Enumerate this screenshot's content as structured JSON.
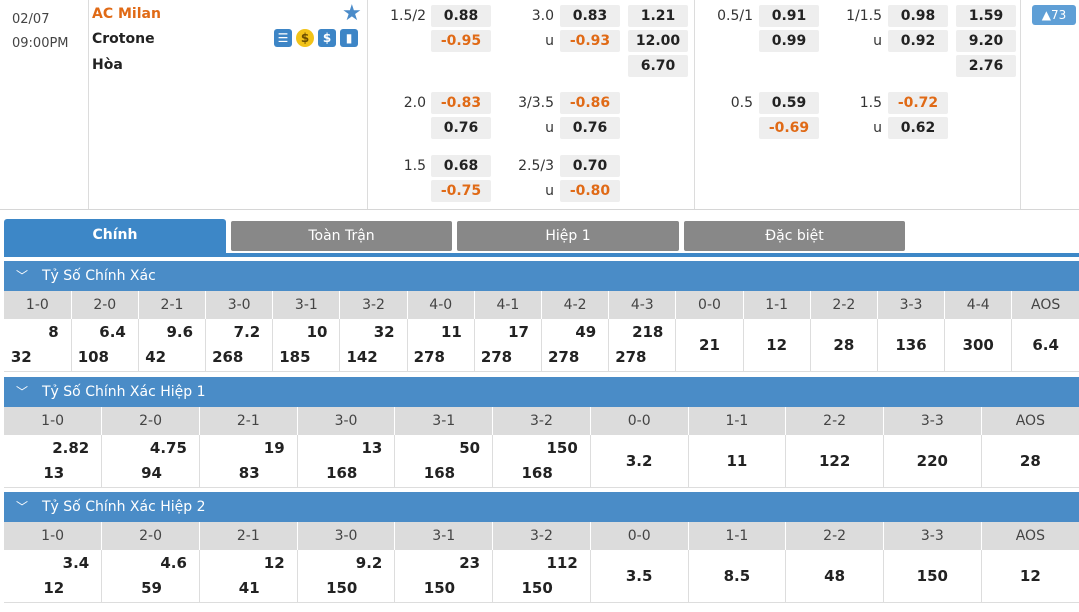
{
  "match": {
    "date": "02/07",
    "time": "09:00PM",
    "home": "AC Milan",
    "away": "Crotone",
    "draw": "Hòa",
    "count": "73"
  },
  "ft_hdp": [
    {
      "line": "1.5/2",
      "home": "0.88",
      "away": "-0.95",
      "ou_line": "3.0",
      "over": "0.83",
      "under": "-0.93",
      "x1": "1.21",
      "x2": "12.00",
      "xd": "6.70"
    },
    {
      "line": "2.0",
      "home": "-0.83",
      "away": "0.76",
      "ou_line": "3/3.5",
      "over": "-0.86",
      "under": "0.76"
    },
    {
      "line": "1.5",
      "home": "0.68",
      "away": "-0.75",
      "ou_line": "2.5/3",
      "over": "0.70",
      "under": "-0.80"
    }
  ],
  "h1_hdp": [
    {
      "line": "0.5/1",
      "home": "0.91",
      "away": "0.99",
      "ou_line": "1/1.5",
      "over": "0.98",
      "under": "0.92",
      "x1": "1.59",
      "x2": "9.20",
      "xd": "2.76"
    },
    {
      "line": "0.5",
      "home": "0.59",
      "away": "-0.69",
      "ou_line": "1.5",
      "over": "-0.72",
      "under": "0.62"
    }
  ],
  "u_label": "u",
  "tabs": [
    "Chính",
    "Toàn Trận",
    "Hiệp 1",
    "Đặc biệt"
  ],
  "sections": [
    {
      "title": "Tỷ Số Chính Xác",
      "cols": [
        "1-0",
        "2-0",
        "2-1",
        "3-0",
        "3-1",
        "3-2",
        "4-0",
        "4-1",
        "4-2",
        "4-3",
        "0-0",
        "1-1",
        "2-2",
        "3-3",
        "4-4",
        "AOS"
      ],
      "a": [
        "8",
        "6.4",
        "9.6",
        "7.2",
        "10",
        "32",
        "11",
        "17",
        "49",
        "218"
      ],
      "b": [
        "32",
        "108",
        "42",
        "268",
        "185",
        "142",
        "278",
        "278",
        "278",
        "278"
      ],
      "single": [
        "21",
        "12",
        "28",
        "136",
        "300",
        "6.4"
      ]
    },
    {
      "title": "Tỷ Số Chính Xác Hiệp 1",
      "cols": [
        "1-0",
        "2-0",
        "2-1",
        "3-0",
        "3-1",
        "3-2",
        "0-0",
        "1-1",
        "2-2",
        "3-3",
        "AOS"
      ],
      "a": [
        "2.82",
        "4.75",
        "19",
        "13",
        "50",
        "150"
      ],
      "b": [
        "13",
        "94",
        "83",
        "168",
        "168",
        "168"
      ],
      "single": [
        "3.2",
        "11",
        "122",
        "220",
        "28"
      ]
    },
    {
      "title": "Tỷ Số Chính Xác Hiệp 2",
      "cols": [
        "1-0",
        "2-0",
        "2-1",
        "3-0",
        "3-1",
        "3-2",
        "0-0",
        "1-1",
        "2-2",
        "3-3",
        "AOS"
      ],
      "a": [
        "3.4",
        "4.6",
        "12",
        "9.2",
        "23",
        "112"
      ],
      "b": [
        "12",
        "59",
        "41",
        "150",
        "150",
        "150"
      ],
      "single": [
        "3.5",
        "8.5",
        "48",
        "150",
        "12"
      ]
    }
  ]
}
